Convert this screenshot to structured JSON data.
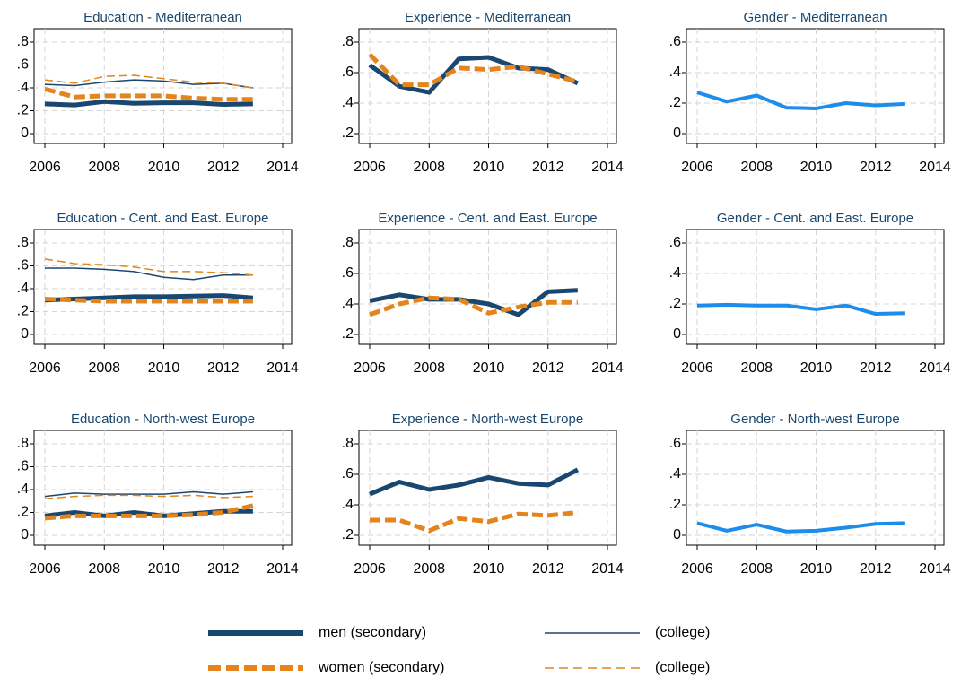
{
  "chart_data": [
    {
      "type": "line",
      "title": "Education - Mediterranean",
      "x": [
        2006,
        2007,
        2008,
        2009,
        2010,
        2011,
        2012,
        2013
      ],
      "xlim": [
        2006,
        2014
      ],
      "xticks": [
        2006,
        2008,
        2010,
        2012,
        2014
      ],
      "ylim": [
        0,
        0.8
      ],
      "yticks": [
        0,
        {
          "value": 0.2,
          "label": ".2"
        },
        {
          "value": 0.4,
          "label": ".4"
        },
        {
          "value": 0.6,
          "label": ".6"
        },
        {
          "value": 0.8,
          "label": ".8"
        }
      ],
      "grid": true,
      "series": [
        {
          "color": "#1a476f",
          "width": 5,
          "dash": [],
          "values": [
            0.26,
            0.25,
            0.28,
            0.265,
            0.27,
            0.27,
            0.255,
            0.26
          ]
        },
        {
          "color": "#1a476f",
          "width": 1.5,
          "dash": [],
          "values": [
            0.43,
            0.42,
            0.45,
            0.47,
            0.46,
            0.43,
            0.44,
            0.4
          ]
        },
        {
          "color": "#e3841c",
          "width": 5,
          "dash": [
            12,
            5
          ],
          "values": [
            0.39,
            0.32,
            0.33,
            0.33,
            0.33,
            0.31,
            0.3,
            0.3
          ]
        },
        {
          "color": "#e3841c",
          "width": 1.5,
          "dash": [
            9,
            5
          ],
          "values": [
            0.47,
            0.44,
            0.5,
            0.51,
            0.48,
            0.45,
            0.44,
            0.4
          ]
        }
      ]
    },
    {
      "type": "line",
      "title": "Experience - Mediterranean",
      "x": [
        2006,
        2007,
        2008,
        2009,
        2010,
        2011,
        2012,
        2013
      ],
      "xlim": [
        2006,
        2014
      ],
      "xticks": [
        2006,
        2008,
        2010,
        2012,
        2014
      ],
      "ylim": [
        0.2,
        0.8
      ],
      "yticks": [
        {
          "value": 0.2,
          "label": ".2"
        },
        {
          "value": 0.4,
          "label": ".4"
        },
        {
          "value": 0.6,
          "label": ".6"
        },
        {
          "value": 0.8,
          "label": ".8"
        }
      ],
      "grid": true,
      "series": [
        {
          "color": "#1a476f",
          "width": 5,
          "dash": [],
          "values": [
            0.65,
            0.51,
            0.47,
            0.69,
            0.7,
            0.63,
            0.62,
            0.53
          ]
        },
        {
          "color": "#e3841c",
          "width": 5,
          "dash": [
            12,
            5
          ],
          "values": [
            0.72,
            0.52,
            0.52,
            0.63,
            0.62,
            0.64,
            0.59,
            0.54
          ]
        }
      ]
    },
    {
      "type": "line",
      "title": "Gender - Mediterranean",
      "x": [
        2006,
        2007,
        2008,
        2009,
        2010,
        2011,
        2012,
        2013
      ],
      "xlim": [
        2006,
        2014
      ],
      "xticks": [
        2006,
        2008,
        2010,
        2012,
        2014
      ],
      "ylim": [
        0,
        0.6
      ],
      "yticks": [
        0,
        {
          "value": 0.2,
          "label": ".2"
        },
        {
          "value": 0.4,
          "label": ".4"
        },
        {
          "value": 0.6,
          "label": ".6"
        }
      ],
      "grid": true,
      "series": [
        {
          "color": "#1e8ceb",
          "width": 4,
          "dash": [],
          "values": [
            0.27,
            0.21,
            0.25,
            0.17,
            0.165,
            0.2,
            0.185,
            0.195
          ]
        }
      ]
    },
    {
      "type": "line",
      "title": "Education - Cent. and East. Europe",
      "x": [
        2006,
        2007,
        2008,
        2009,
        2010,
        2011,
        2012,
        2013
      ],
      "xlim": [
        2006,
        2014
      ],
      "xticks": [
        2006,
        2008,
        2010,
        2012,
        2014
      ],
      "ylim": [
        0,
        0.8
      ],
      "yticks": [
        0,
        {
          "value": 0.2,
          "label": ".2"
        },
        {
          "value": 0.4,
          "label": ".4"
        },
        {
          "value": 0.6,
          "label": ".6"
        },
        {
          "value": 0.8,
          "label": ".8"
        }
      ],
      "grid": true,
      "series": [
        {
          "color": "#1a476f",
          "width": 5,
          "dash": [],
          "values": [
            0.3,
            0.31,
            0.32,
            0.33,
            0.33,
            0.335,
            0.34,
            0.32
          ]
        },
        {
          "color": "#1a476f",
          "width": 1.5,
          "dash": [],
          "values": [
            0.58,
            0.58,
            0.57,
            0.55,
            0.5,
            0.48,
            0.52,
            0.52
          ]
        },
        {
          "color": "#e3841c",
          "width": 5,
          "dash": [
            12,
            5
          ],
          "values": [
            0.31,
            0.3,
            0.29,
            0.29,
            0.29,
            0.29,
            0.29,
            0.29
          ]
        },
        {
          "color": "#e3841c",
          "width": 1.5,
          "dash": [
            9,
            5
          ],
          "values": [
            0.66,
            0.62,
            0.61,
            0.59,
            0.55,
            0.55,
            0.54,
            0.52
          ]
        }
      ]
    },
    {
      "type": "line",
      "title": "Experience - Cent. and East. Europe",
      "x": [
        2006,
        2007,
        2008,
        2009,
        2010,
        2011,
        2012,
        2013
      ],
      "xlim": [
        2006,
        2014
      ],
      "xticks": [
        2006,
        2008,
        2010,
        2012,
        2014
      ],
      "ylim": [
        0.2,
        0.8
      ],
      "yticks": [
        {
          "value": 0.2,
          "label": ".2"
        },
        {
          "value": 0.4,
          "label": ".4"
        },
        {
          "value": 0.6,
          "label": ".6"
        },
        {
          "value": 0.8,
          "label": ".8"
        }
      ],
      "grid": true,
      "series": [
        {
          "color": "#1a476f",
          "width": 5,
          "dash": [],
          "values": [
            0.42,
            0.46,
            0.43,
            0.43,
            0.4,
            0.33,
            0.48,
            0.49
          ]
        },
        {
          "color": "#e3841c",
          "width": 5,
          "dash": [
            12,
            5
          ],
          "values": [
            0.33,
            0.4,
            0.44,
            0.43,
            0.34,
            0.38,
            0.41,
            0.41
          ]
        }
      ]
    },
    {
      "type": "line",
      "title": "Gender - Cent. and East. Europe",
      "x": [
        2006,
        2007,
        2008,
        2009,
        2010,
        2011,
        2012,
        2013
      ],
      "xlim": [
        2006,
        2014
      ],
      "xticks": [
        2006,
        2008,
        2010,
        2012,
        2014
      ],
      "ylim": [
        0,
        0.6
      ],
      "yticks": [
        0,
        {
          "value": 0.2,
          "label": ".2"
        },
        {
          "value": 0.4,
          "label": ".4"
        },
        {
          "value": 0.6,
          "label": ".6"
        }
      ],
      "grid": true,
      "series": [
        {
          "color": "#1e8ceb",
          "width": 4,
          "dash": [],
          "values": [
            0.19,
            0.195,
            0.19,
            0.19,
            0.165,
            0.19,
            0.135,
            0.14
          ]
        }
      ]
    },
    {
      "type": "line",
      "title": "Education - North-west Europe",
      "x": [
        2006,
        2007,
        2008,
        2009,
        2010,
        2011,
        2012,
        2013
      ],
      "xlim": [
        2006,
        2014
      ],
      "xticks": [
        2006,
        2008,
        2010,
        2012,
        2014
      ],
      "ylim": [
        0,
        0.8
      ],
      "yticks": [
        0,
        {
          "value": 0.2,
          "label": ".2"
        },
        {
          "value": 0.4,
          "label": ".4"
        },
        {
          "value": 0.6,
          "label": ".6"
        },
        {
          "value": 0.8,
          "label": ".8"
        }
      ],
      "grid": true,
      "series": [
        {
          "color": "#1a476f",
          "width": 5,
          "dash": [],
          "values": [
            0.17,
            0.2,
            0.17,
            0.2,
            0.17,
            0.19,
            0.21,
            0.21
          ]
        },
        {
          "color": "#1a476f",
          "width": 1.5,
          "dash": [],
          "values": [
            0.34,
            0.37,
            0.36,
            0.36,
            0.36,
            0.38,
            0.36,
            0.38
          ]
        },
        {
          "color": "#e3841c",
          "width": 5,
          "dash": [
            12,
            5
          ],
          "values": [
            0.15,
            0.17,
            0.17,
            0.17,
            0.17,
            0.18,
            0.2,
            0.26
          ]
        },
        {
          "color": "#e3841c",
          "width": 1.5,
          "dash": [
            9,
            5
          ],
          "values": [
            0.32,
            0.34,
            0.35,
            0.35,
            0.34,
            0.35,
            0.33,
            0.34
          ]
        }
      ]
    },
    {
      "type": "line",
      "title": "Experience - North-west Europe",
      "x": [
        2006,
        2007,
        2008,
        2009,
        2010,
        2011,
        2012,
        2013
      ],
      "xlim": [
        2006,
        2014
      ],
      "xticks": [
        2006,
        2008,
        2010,
        2012,
        2014
      ],
      "ylim": [
        0.2,
        0.8
      ],
      "yticks": [
        {
          "value": 0.2,
          "label": ".2"
        },
        {
          "value": 0.4,
          "label": ".4"
        },
        {
          "value": 0.6,
          "label": ".6"
        },
        {
          "value": 0.8,
          "label": ".8"
        }
      ],
      "grid": true,
      "series": [
        {
          "color": "#1a476f",
          "width": 5,
          "dash": [],
          "values": [
            0.47,
            0.55,
            0.5,
            0.53,
            0.58,
            0.54,
            0.53,
            0.63
          ]
        },
        {
          "color": "#e3841c",
          "width": 5,
          "dash": [
            12,
            5
          ],
          "values": [
            0.3,
            0.3,
            0.23,
            0.31,
            0.29,
            0.34,
            0.33,
            0.35
          ]
        }
      ]
    },
    {
      "type": "line",
      "title": "Gender - North-west Europe",
      "x": [
        2006,
        2007,
        2008,
        2009,
        2010,
        2011,
        2012,
        2013
      ],
      "xlim": [
        2006,
        2014
      ],
      "xticks": [
        2006,
        2008,
        2010,
        2012,
        2014
      ],
      "ylim": [
        0,
        0.6
      ],
      "yticks": [
        0,
        {
          "value": 0.2,
          "label": ".2"
        },
        {
          "value": 0.4,
          "label": ".4"
        },
        {
          "value": 0.6,
          "label": ".6"
        }
      ],
      "grid": true,
      "series": [
        {
          "color": "#1e8ceb",
          "width": 4,
          "dash": [],
          "values": [
            0.08,
            0.03,
            0.07,
            0.025,
            0.03,
            0.05,
            0.075,
            0.08
          ]
        }
      ]
    }
  ],
  "legend": {
    "entries": [
      {
        "name": "men (secondary)",
        "color": "#1a476f",
        "width": 6,
        "dash": []
      },
      {
        "name": "(college)",
        "color": "#1a476f",
        "width": 1.5,
        "dash": []
      },
      {
        "name": "women (secondary)",
        "color": "#e3841c",
        "width": 6,
        "dash": [
          14,
          6
        ]
      },
      {
        "name": "(college)",
        "color": "#e3841c",
        "width": 1.5,
        "dash": [
          10,
          6
        ]
      }
    ]
  }
}
